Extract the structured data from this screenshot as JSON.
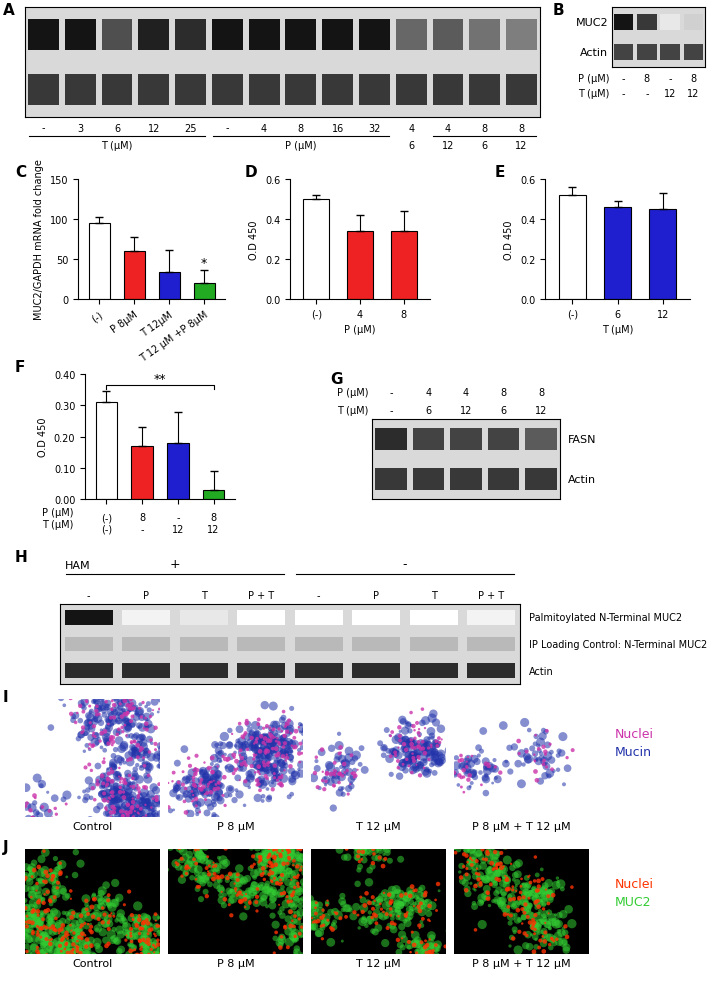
{
  "chart_data": [
    {
      "panel_label": "C",
      "type": "bar",
      "categories": [
        "(-)",
        "P 8µM",
        "T 12µM",
        "T 12 µM +P 8µM"
      ],
      "values": [
        95,
        60,
        34,
        20
      ],
      "error": [
        7,
        18,
        27,
        16
      ],
      "colors": [
        "#ffffff",
        "#ee2222",
        "#1f1fd0",
        "#22aa22"
      ],
      "y_label": "MUC2/GAPDH mRNA fold change",
      "ylim": [
        0,
        150
      ],
      "yticks": [
        0,
        50,
        100,
        150
      ],
      "annotations": [
        {
          "text": "*",
          "category": 3
        }
      ]
    },
    {
      "panel_label": "D",
      "type": "bar",
      "categories": [
        "(-)",
        "4",
        "8"
      ],
      "values": [
        0.5,
        0.34,
        0.34
      ],
      "error": [
        0.02,
        0.08,
        0.1
      ],
      "colors": [
        "#ffffff",
        "#ee2222",
        "#ee2222"
      ],
      "y_label": "O.D 450",
      "x_label": "P (µM)",
      "ylim": [
        0,
        0.6
      ],
      "yticks": [
        {
          "value": 0,
          "label": "0.0"
        },
        {
          "value": 0.2,
          "label": "0.2"
        },
        {
          "value": 0.4,
          "label": "0.4"
        },
        {
          "value": 0.6,
          "label": "0.6"
        }
      ]
    },
    {
      "panel_label": "E",
      "type": "bar",
      "categories": [
        "(-)",
        "6",
        "12"
      ],
      "values": [
        0.52,
        0.46,
        0.45
      ],
      "error": [
        0.04,
        0.03,
        0.08
      ],
      "colors": [
        "#ffffff",
        "#1f1fd0",
        "#1f1fd0"
      ],
      "y_label": "O.D 450",
      "x_label": "T (µM)",
      "ylim": [
        0,
        0.6
      ],
      "yticks": [
        {
          "value": 0,
          "label": "0.0"
        },
        {
          "value": 0.2,
          "label": "0.2"
        },
        {
          "value": 0.4,
          "label": "0.4"
        },
        {
          "value": 0.6,
          "label": "0.6"
        }
      ]
    },
    {
      "panel_label": "F",
      "type": "bar",
      "categories": [
        "(-)\n(-)",
        "8\n-",
        "-\n12",
        "8\n12"
      ],
      "row_labels": [
        "P (µM)",
        "T (µM)"
      ],
      "values": [
        0.31,
        0.17,
        0.18,
        0.03
      ],
      "error": [
        0.035,
        0.06,
        0.1,
        0.06
      ],
      "colors": [
        "#ffffff",
        "#ee2222",
        "#1f1fd0",
        "#22aa22"
      ],
      "y_label": "O.D 450",
      "ylim": [
        0,
        0.4
      ],
      "yticks": [
        {
          "value": 0,
          "label": "0.00"
        },
        {
          "value": 0.1,
          "label": "0.10"
        },
        {
          "value": 0.2,
          "label": "0.20"
        },
        {
          "value": 0.3,
          "label": "0.30"
        },
        {
          "value": 0.4,
          "label": "0.40"
        }
      ],
      "annotations": [
        {
          "text": "**",
          "from": 0,
          "to": 3
        }
      ]
    }
  ],
  "blots": [
    {
      "panel_label": "A",
      "bands": [
        {
          "intensity": [
            1,
            1,
            0.75,
            0.95,
            0.9,
            1,
            1,
            1,
            1,
            1,
            0.65,
            0.7,
            0.6,
            0.55
          ]
        },
        {
          "intensity": [
            0.85,
            0.85,
            0.85,
            0.85,
            0.85,
            0.85,
            0.85,
            0.85,
            0.85,
            0.85,
            0.85,
            0.85,
            0.85,
            0.85
          ]
        }
      ],
      "lane_rows": [
        [
          "-",
          "3",
          "6",
          "12",
          "25",
          "-",
          "4",
          "8",
          "16",
          "32",
          "4",
          "4",
          "8",
          "8"
        ],
        [
          null,
          null,
          null,
          null,
          null,
          null,
          null,
          null,
          null,
          null,
          "6",
          "12",
          "6",
          "12"
        ]
      ],
      "groups": [
        {
          "label": "T (µM)",
          "from": 0,
          "to": 4
        },
        {
          "label": "P (µM)",
          "from": 5,
          "to": 9
        },
        {
          "from": 11,
          "to": 13
        }
      ]
    },
    {
      "panel_label": "B",
      "bands": [
        {
          "label": "MUC2",
          "intensity": [
            1,
            0.85,
            0.1,
            0.2
          ]
        },
        {
          "label": "Actin",
          "intensity": [
            0.8,
            0.8,
            0.8,
            0.8
          ]
        }
      ],
      "rows": [
        {
          "label": "P (µM)",
          "values": [
            "-",
            "8",
            "-",
            "8"
          ]
        },
        {
          "label": "T (µM)",
          "values": [
            "-",
            "-",
            "12",
            "12"
          ]
        }
      ]
    },
    {
      "panel_label": "G",
      "bands": [
        {
          "label": "FASN",
          "intensity": [
            0.9,
            0.8,
            0.8,
            0.8,
            0.7
          ]
        },
        {
          "label": "Actin",
          "intensity": [
            0.85,
            0.85,
            0.85,
            0.85,
            0.85
          ]
        }
      ],
      "rows": [
        {
          "label": "P (µM)",
          "values": [
            "-",
            "4",
            "4",
            "8",
            "8"
          ]
        },
        {
          "label": "T (µM)",
          "values": [
            "-",
            "6",
            "12",
            "6",
            "12"
          ]
        }
      ]
    },
    {
      "panel_label": "H",
      "group_title": "HAM",
      "groups": [
        {
          "label": "+",
          "from": 0,
          "to": 3
        },
        {
          "label": "-",
          "from": 4,
          "to": 7
        }
      ],
      "lanes": [
        "-",
        "P",
        "T",
        "P + T",
        "-",
        "P",
        "T",
        "P + T"
      ],
      "bands": [
        {
          "label": "Palmitoylated N-Terminal MUC2",
          "intensity": [
            1,
            0.05,
            0.1,
            0,
            0,
            0,
            0,
            0.05
          ]
        },
        {
          "label": "IP Loading Control: N-Terminal MUC2",
          "intensity": [
            0.3,
            0.3,
            0.3,
            0.3,
            0.3,
            0.3,
            0.3,
            0.3
          ]
        },
        {
          "label": "Actin",
          "intensity": [
            0.9,
            0.9,
            0.9,
            0.9,
            0.9,
            0.9,
            0.9,
            0.9
          ]
        }
      ]
    }
  ],
  "micrographs": [
    {
      "panel_label": "I",
      "captions": [
        "Control",
        "P 8 µM",
        "T 12 µM",
        "P 8 µM + T 12 µM"
      ],
      "coverage": [
        1.0,
        0.7,
        0.35,
        0.15
      ],
      "legend": [
        {
          "text": "Nuclei",
          "color": "#cc33aa"
        },
        {
          "text": "Mucin",
          "color": "#2233aa"
        }
      ]
    },
    {
      "panel_label": "J",
      "captions": [
        "Control",
        "P 8 µM",
        "T 12 µM",
        "P 8 µM + T 12 µM"
      ],
      "coverage": [
        1.0,
        0.7,
        0.55,
        0.5
      ],
      "legend": [
        {
          "text": "Nuclei",
          "color": "#ff3300"
        },
        {
          "text": "MUC2",
          "color": "#33cc33"
        }
      ]
    }
  ]
}
